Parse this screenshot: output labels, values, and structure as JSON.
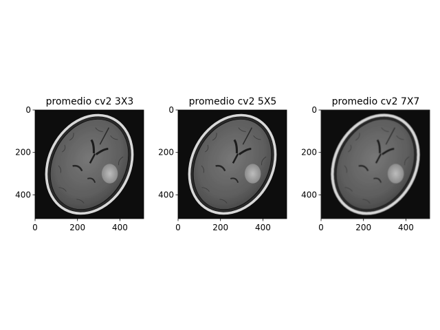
{
  "figure": {
    "panels": [
      {
        "title": "promedio cv2 3X3",
        "blur": 0.5
      },
      {
        "title": "promedio cv2 5X5",
        "blur": 1.0
      },
      {
        "title": "promedio cv2 7X7",
        "blur": 1.5
      }
    ],
    "x_ticks": [
      "0",
      "200",
      "400"
    ],
    "y_ticks": [
      "0",
      "200",
      "400"
    ],
    "image_extent": [
      0,
      512
    ],
    "x_tick_values": [
      0,
      200,
      400
    ],
    "y_tick_values": [
      0,
      200,
      400
    ]
  }
}
